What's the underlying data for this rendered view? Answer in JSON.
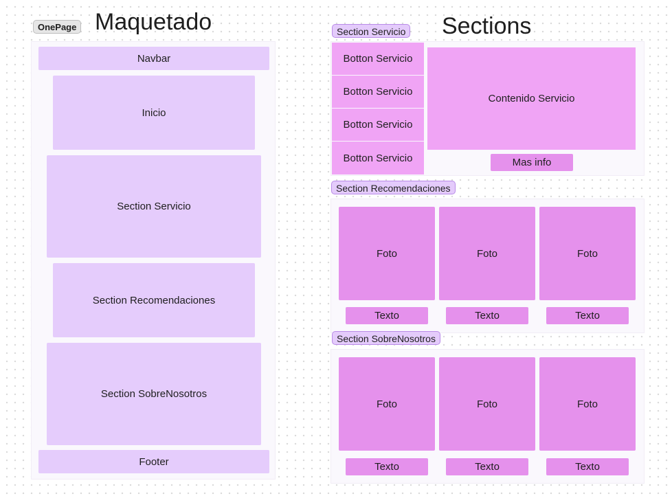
{
  "left": {
    "tag": "OnePage",
    "title": "Maquetado",
    "blocks": {
      "navbar": "Navbar",
      "inicio": "Inicio",
      "servicio": "Section Servicio",
      "recomendaciones": "Section Recomendaciones",
      "sobrenosotros": "Section SobreNosotros",
      "footer": "Footer"
    }
  },
  "right": {
    "title": "Sections",
    "servicio": {
      "tag": "Section Servicio",
      "buttons": [
        "Botton Servicio",
        "Botton Servicio",
        "Botton Servicio",
        "Botton Servicio"
      ],
      "content": "Contenido Servicio",
      "more": "Mas info"
    },
    "recomendaciones": {
      "tag": "Section Recomendaciones",
      "photos": [
        "Foto",
        "Foto",
        "Foto"
      ],
      "texts": [
        "Texto",
        "Texto",
        "Texto"
      ]
    },
    "sobrenosotros": {
      "tag": "Section SobreNosotros",
      "photos": [
        "Foto",
        "Foto",
        "Foto"
      ],
      "texts": [
        "Texto",
        "Texto",
        "Texto"
      ]
    }
  },
  "colors": {
    "lavender": "#e5ccfc",
    "pink": "#f0a4f5",
    "magenta": "#e591ec",
    "frame": "#faf8fd"
  }
}
